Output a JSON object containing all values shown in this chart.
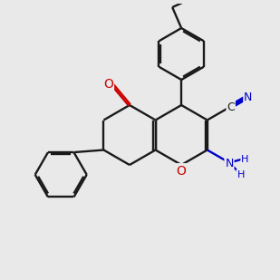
{
  "bg": "#e9e9e9",
  "bc": "#1a1a1a",
  "oc": "#cc0000",
  "nc": "#0000cc",
  "lw": 1.7,
  "fs": 9,
  "ring_r": 0.33,
  "benz_r": 0.28,
  "dbo_inner": 0.022,
  "dbo_keto": 0.022,
  "dbo_cn": 0.016
}
